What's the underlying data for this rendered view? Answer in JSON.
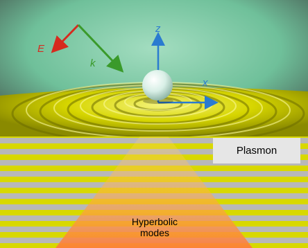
{
  "labels": {
    "e_field": "E",
    "wave_vector": "k",
    "z_axis": "z",
    "x_axis": "x",
    "plasmon": "Plasmon",
    "hyperbolic_line1": "Hyperbolic",
    "hyperbolic_line2": "modes"
  },
  "colors": {
    "e_arrow": "#d62a1e",
    "k_arrow": "#3a9a2a",
    "axes": "#2a7bd0",
    "background_green": "#7fc9a3",
    "surface_yellow": "#d8d800",
    "stripe_gray": "#b8b8b8",
    "hyperbolic_glow": "#ff8a3a"
  },
  "icons": {
    "sphere": "white-nanosphere",
    "ripples": "surface-wave-ripples"
  }
}
